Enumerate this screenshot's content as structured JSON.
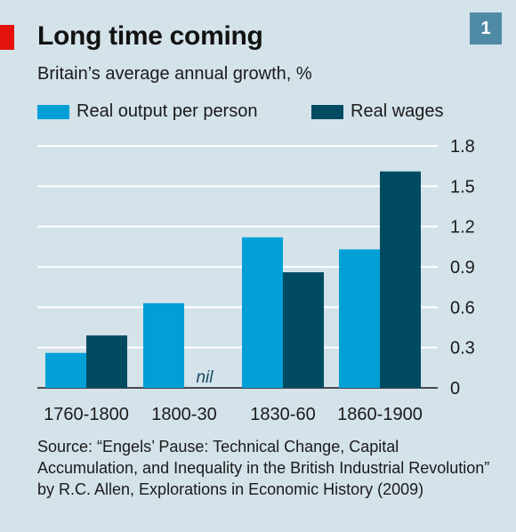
{
  "header": {
    "title": "Long time coming",
    "subtitle": "Britain’s average annual growth, %",
    "chart_number": "1"
  },
  "source": "Source: “Engels’ Pause: Technical Change, Capital Accumulation, and Inequality in the British Industrial Revolution” by R.C. Allen, Explorations in Economic History (2009)",
  "colors": {
    "background": "#d4e2ea",
    "accent_red": "#e3120b",
    "real_output": "#00a0d7",
    "real_wages": "#004a62"
  },
  "chart_data": {
    "type": "bar",
    "title": "Long time coming",
    "subtitle": "Britain’s average annual growth, %",
    "categories": [
      "1760-1800",
      "1800-30",
      "1830-60",
      "1860-1900"
    ],
    "series": [
      {
        "name": "Real output per person",
        "values": [
          0.26,
          0.63,
          1.12,
          1.03
        ],
        "color": "#00a0d7"
      },
      {
        "name": "Real wages",
        "values": [
          0.39,
          0,
          0.86,
          1.61
        ],
        "color": "#004a62"
      }
    ],
    "annotations": [
      {
        "category": "1800-30",
        "series": "Real wages",
        "text": "nil"
      }
    ],
    "ylim": [
      0,
      1.8
    ],
    "yticks": [
      "1.8",
      "1.5",
      "1.2",
      "0.9",
      "0.6",
      "0.3",
      "0"
    ],
    "ytick_values": [
      1.8,
      1.5,
      1.2,
      0.9,
      0.6,
      0.3,
      0
    ],
    "y_axis_side": "right",
    "grid": true,
    "legend_position": "top-left",
    "xlabel": "",
    "ylabel": ""
  }
}
